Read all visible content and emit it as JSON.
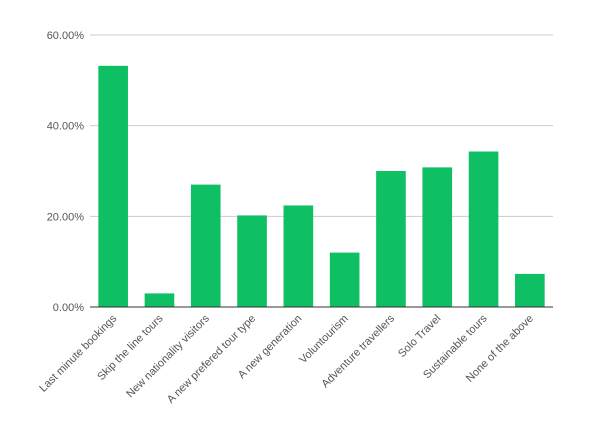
{
  "chart_data": {
    "type": "bar",
    "title": "",
    "xlabel": "",
    "ylabel": "",
    "categories": [
      "Last minute bookings",
      "Skip the line tours",
      "New nationality visitors",
      "A new prefered tour type",
      "A new generation",
      "Voluntourism",
      "Adventure travellers",
      "Solo Travel",
      "Sustainable tours",
      "None of the above"
    ],
    "values": [
      53.2,
      3.0,
      27.0,
      20.2,
      22.4,
      12.0,
      30.0,
      30.8,
      34.3,
      7.3
    ],
    "value_unit": "percent",
    "ylim": [
      0,
      60
    ],
    "y_ticks": [
      0,
      20,
      40,
      60
    ],
    "y_tick_labels": [
      "0.00%",
      "20.00%",
      "40.00%",
      "60.00%"
    ],
    "grid": true,
    "legend": "none",
    "bar_color": "#0fbf63",
    "grid_color": "#cccccc",
    "axis_color": "#333333",
    "text_color": "#555555"
  }
}
